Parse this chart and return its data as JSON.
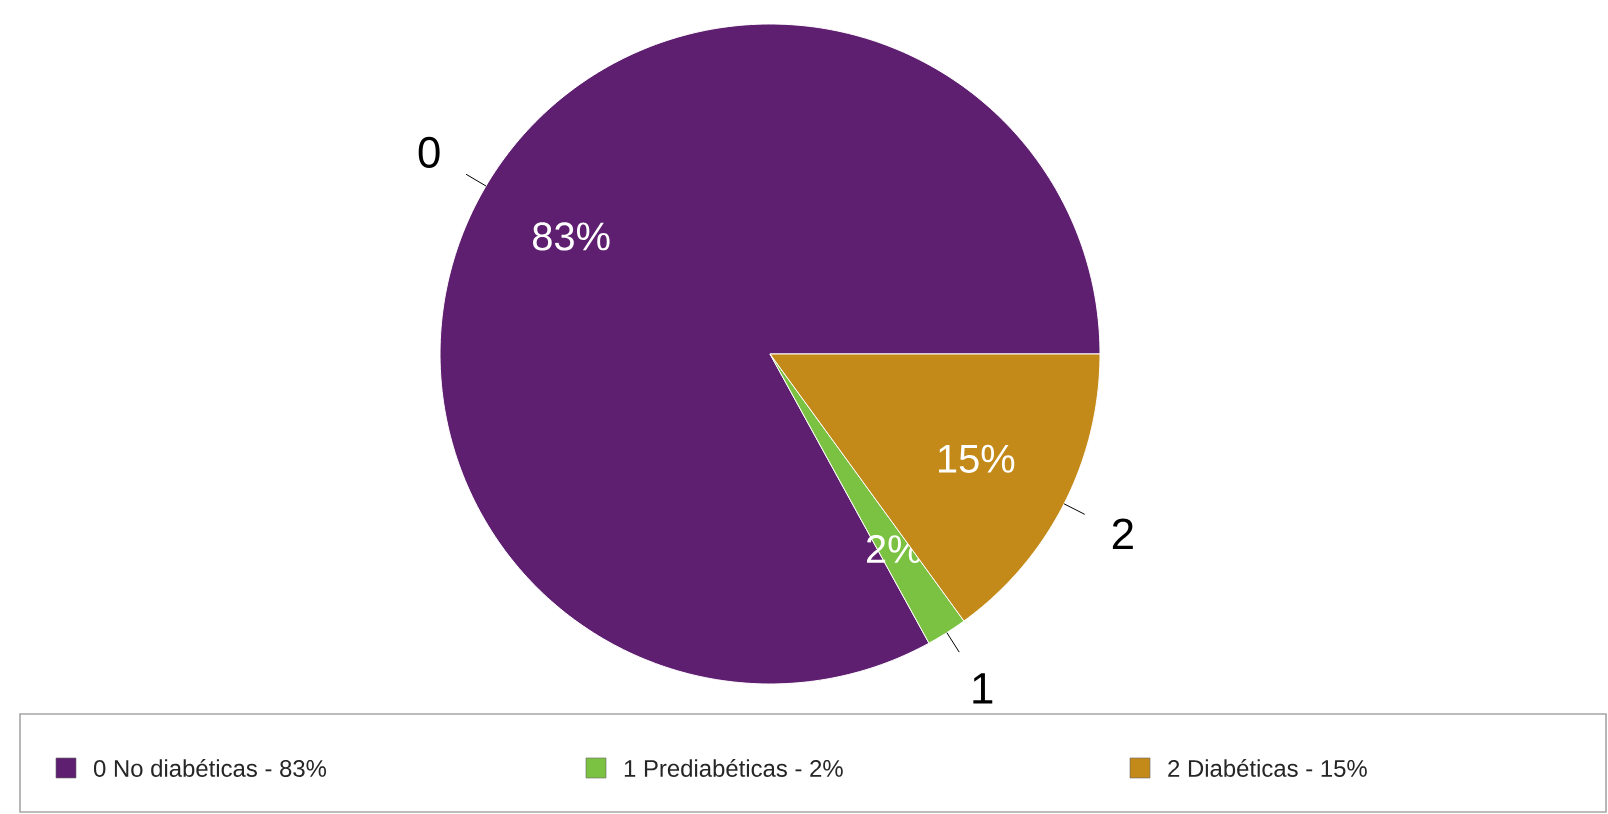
{
  "chart_data": {
    "type": "pie",
    "categories": [
      "0 No diabéticas - 83%",
      "1 Prediabéticas - 2%",
      "2 Diabéticas - 15%"
    ],
    "values": [
      83,
      2,
      15
    ],
    "colors": [
      "#5f1f70",
      "#7cc242",
      "#c48a19"
    ],
    "value_labels": [
      "83%",
      "2%",
      "15%"
    ],
    "annotations": [
      "0",
      "1",
      "2"
    ],
    "legend": "bottom"
  }
}
